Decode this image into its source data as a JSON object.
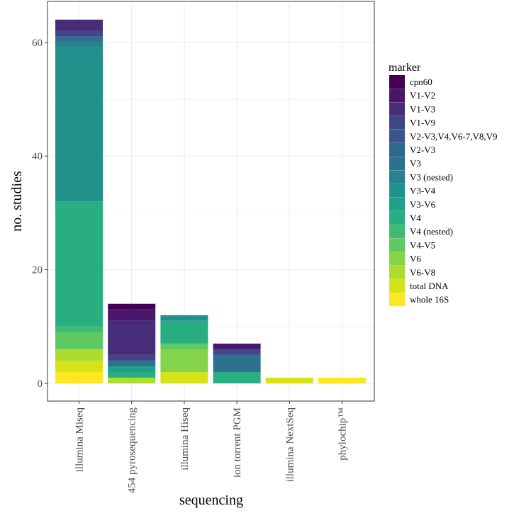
{
  "chart_data": {
    "type": "bar",
    "stacked": true,
    "xlabel": "sequencing",
    "ylabel": "no. studies",
    "ylim": [
      0,
      66
    ],
    "yticks": [
      0,
      20,
      40,
      60
    ],
    "grid": true,
    "legend": {
      "title": "marker",
      "placement": "right"
    },
    "categories": [
      "illumina Miseq",
      "454 pyrosequencing",
      "illumina Hiseq",
      "ion torrent PGM",
      "illumina NextSeq",
      "phylochip™"
    ],
    "series": [
      {
        "name": "cpn60",
        "color": "#440154",
        "values": [
          0,
          1,
          0,
          0,
          0,
          0
        ]
      },
      {
        "name": "V1-V2",
        "color": "#481769",
        "values": [
          0,
          2,
          0,
          1,
          0,
          0
        ]
      },
      {
        "name": "V1-V3",
        "color": "#472c7a",
        "values": [
          2,
          6,
          0,
          0,
          0,
          0
        ]
      },
      {
        "name": "V1-V9",
        "color": "#3f4788",
        "values": [
          1,
          1,
          0,
          1,
          0,
          0
        ]
      },
      {
        "name": "V2-V3,V4,V6-7,V8,V9",
        "color": "#39568c",
        "values": [
          0,
          0,
          0,
          0,
          0,
          0
        ]
      },
      {
        "name": "V2-V3",
        "color": "#31688e",
        "values": [
          0,
          0,
          0,
          0,
          0,
          0
        ]
      },
      {
        "name": "V3",
        "color": "#2c728e",
        "values": [
          1,
          1,
          0,
          3,
          0,
          0
        ]
      },
      {
        "name": "V3 (nested)",
        "color": "#26828e",
        "values": [
          1,
          0,
          0,
          0,
          0,
          0
        ]
      },
      {
        "name": "V3-V4",
        "color": "#21918c",
        "values": [
          27,
          0,
          1,
          0,
          0,
          0
        ]
      },
      {
        "name": "V3-V6",
        "color": "#1fa088",
        "values": [
          0,
          1,
          0,
          0,
          0,
          0
        ]
      },
      {
        "name": "V4",
        "color": "#28ae80",
        "values": [
          22,
          1,
          4,
          2,
          0,
          0
        ]
      },
      {
        "name": "V4 (nested)",
        "color": "#3fbc73",
        "values": [
          1,
          0,
          0,
          0,
          0,
          0
        ]
      },
      {
        "name": "V4-V5",
        "color": "#5ec962",
        "values": [
          3,
          0,
          1,
          0,
          0,
          0
        ]
      },
      {
        "name": "V6",
        "color": "#84d44b",
        "values": [
          0,
          0,
          4,
          0,
          0,
          0
        ]
      },
      {
        "name": "V6-V8",
        "color": "#addc30",
        "values": [
          2,
          1,
          0,
          0,
          0,
          0
        ]
      },
      {
        "name": "total DNA",
        "color": "#d8e219",
        "values": [
          2,
          0,
          2,
          0,
          1,
          0
        ]
      },
      {
        "name": "whole 16S",
        "color": "#fde725",
        "values": [
          2,
          0,
          0,
          0,
          0,
          1
        ]
      }
    ]
  }
}
